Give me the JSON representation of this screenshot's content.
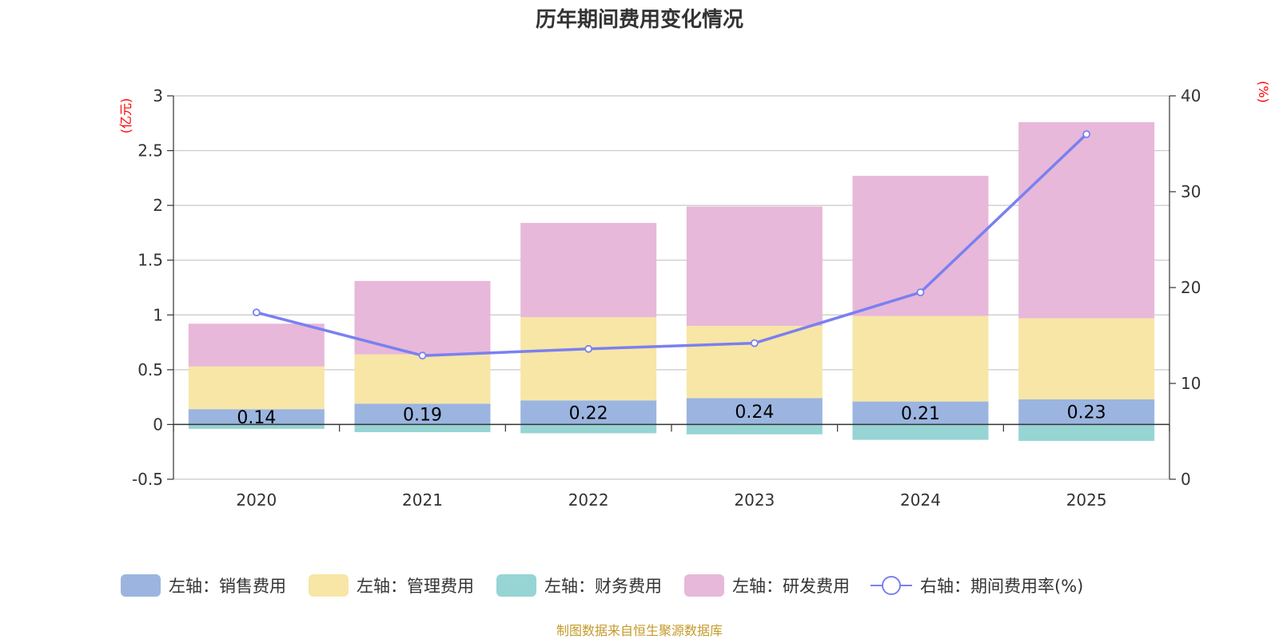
{
  "chart_data": {
    "type": "bar",
    "title": "历年期间费用变化情况",
    "categories": [
      "2020",
      "2021",
      "2022",
      "2023",
      "2024",
      "2025"
    ],
    "left_axis": {
      "unit": "(亿元)",
      "ylim": [
        -0.5,
        3
      ],
      "ticks": [
        3,
        2.5,
        2,
        1.5,
        1,
        0.5,
        0,
        -0.5
      ],
      "tick_labels": [
        "3",
        "2.5",
        "2",
        "1.5",
        "1",
        "0.5",
        "0",
        "-0.5"
      ]
    },
    "right_axis": {
      "unit": "(%)",
      "ylim": [
        0,
        40
      ],
      "ticks": [
        40,
        30,
        20,
        10,
        0
      ],
      "tick_labels": [
        "40",
        "30",
        "20",
        "10",
        "0"
      ]
    },
    "series": [
      {
        "name": "左轴：销售费用",
        "type": "bar",
        "axis": "left",
        "color": "#9bb5e0",
        "values": [
          0.14,
          0.19,
          0.22,
          0.24,
          0.21,
          0.23
        ],
        "labels": [
          "0.14",
          "0.19",
          "0.22",
          "0.24",
          "0.21",
          "0.23"
        ]
      },
      {
        "name": "左轴：管理费用",
        "type": "bar",
        "axis": "left",
        "color": "#f7e6a6",
        "values": [
          0.39,
          0.45,
          0.76,
          0.66,
          0.78,
          0.74
        ]
      },
      {
        "name": "左轴：财务费用",
        "type": "bar",
        "axis": "left",
        "color": "#97d4d4",
        "values": [
          -0.04,
          -0.07,
          -0.08,
          -0.09,
          -0.14,
          -0.15
        ]
      },
      {
        "name": "左轴：研发费用",
        "type": "bar",
        "axis": "left",
        "color": "#e7b8d9",
        "values": [
          0.39,
          0.67,
          0.86,
          1.09,
          1.28,
          1.79
        ]
      },
      {
        "name": "右轴：期间费用率(%)",
        "type": "line",
        "axis": "right",
        "color": "#7a80f0",
        "values": [
          17.4,
          12.9,
          13.6,
          14.2,
          19.5,
          36.0
        ]
      }
    ],
    "legend_position": "bottom",
    "grid": true
  },
  "source": "制图数据来自恒生聚源数据库"
}
